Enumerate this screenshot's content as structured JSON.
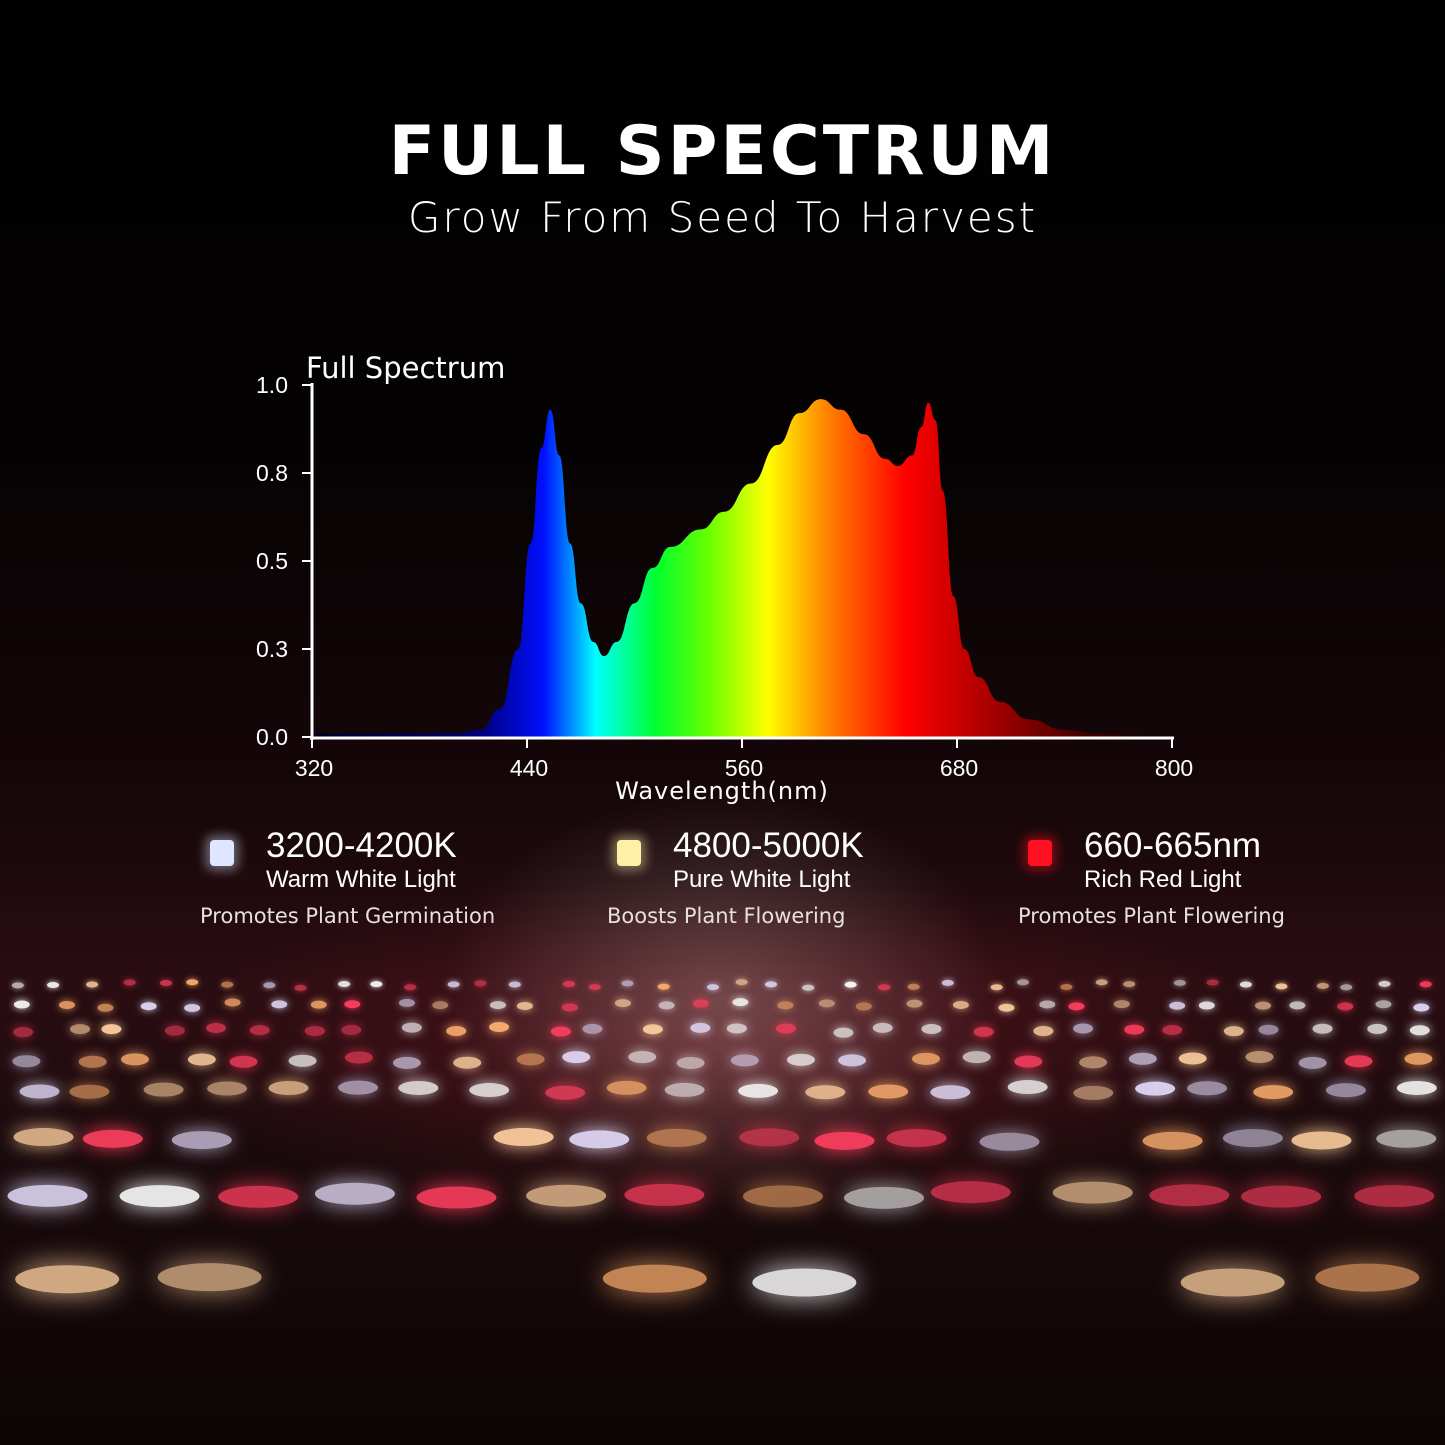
{
  "header": {
    "title": "FULL SPECTRUM",
    "subtitle": "Grow From Seed To Harvest"
  },
  "chart_data": {
    "type": "area",
    "title": "Full Spectrum",
    "xlabel": "Wavelength(nm)",
    "ylabel": "",
    "xlim": [
      320,
      800
    ],
    "ylim": [
      0,
      1
    ],
    "x_ticks": [
      320,
      440,
      560,
      680,
      800
    ],
    "y_tick_labels": [
      "0.0",
      "0.3",
      "0.5",
      "0.8",
      "1.0"
    ],
    "grid": false,
    "fill": "visible-spectrum gradient",
    "x": [
      320,
      400,
      414,
      425,
      435,
      442,
      448,
      453,
      458,
      464,
      470,
      477,
      483,
      490,
      500,
      510,
      520,
      537,
      550,
      565,
      580,
      592,
      604,
      615,
      628,
      640,
      647,
      655,
      660,
      664,
      668,
      672,
      678,
      684,
      692,
      704,
      720,
      740,
      760,
      780,
      800
    ],
    "y": [
      0.01,
      0.01,
      0.02,
      0.08,
      0.25,
      0.55,
      0.82,
      0.93,
      0.8,
      0.55,
      0.38,
      0.27,
      0.23,
      0.27,
      0.38,
      0.48,
      0.54,
      0.59,
      0.64,
      0.72,
      0.83,
      0.92,
      0.96,
      0.93,
      0.86,
      0.79,
      0.77,
      0.8,
      0.88,
      0.95,
      0.9,
      0.7,
      0.4,
      0.25,
      0.17,
      0.1,
      0.05,
      0.02,
      0.01,
      0.005,
      0.0
    ]
  },
  "legend": [
    {
      "range": "3200-4200K",
      "name": "Warm White Light",
      "desc": "Promotes Plant Germination",
      "color": "#dfe6ff"
    },
    {
      "range": "4800-5000K",
      "name": "Pure White Light",
      "desc": "Boosts Plant Flowering",
      "color": "#fff0a8"
    },
    {
      "range": "660-665nm",
      "name": "Rich Red Light",
      "desc": "Promotes Plant Flowering",
      "color": "#ff1020"
    }
  ]
}
